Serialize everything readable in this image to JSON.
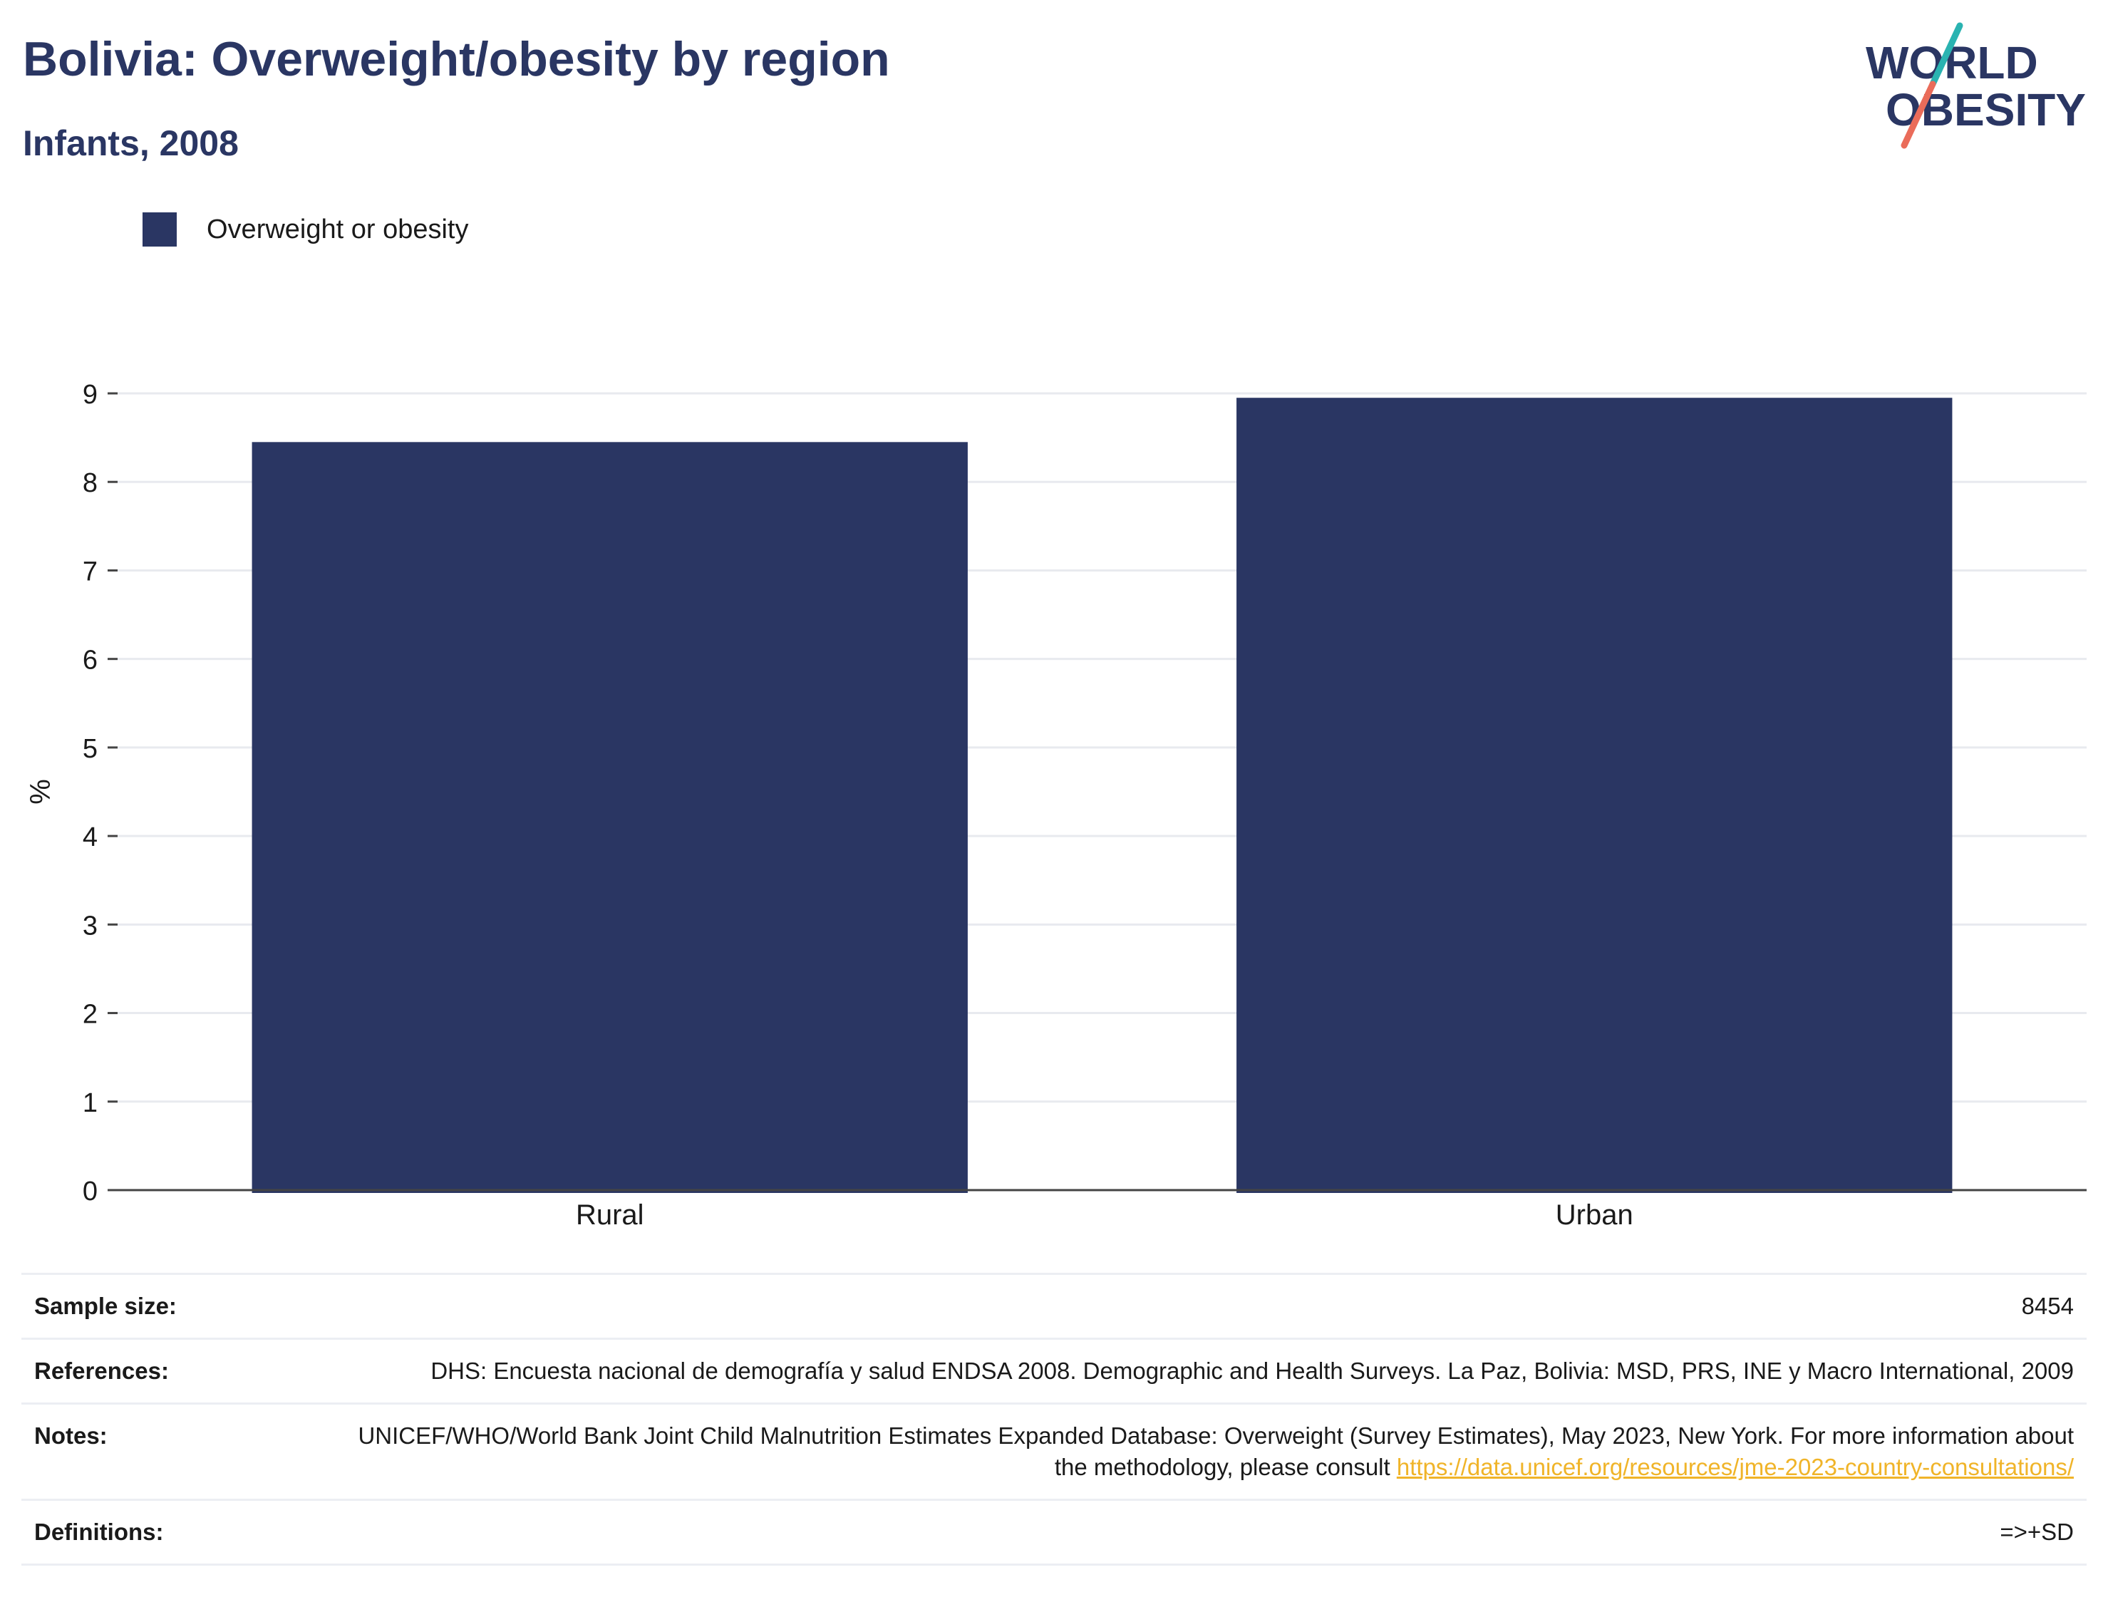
{
  "header": {
    "title": "Bolivia: Overweight/obesity by region",
    "subtitle": "Infants, 2008"
  },
  "logo": {
    "line1": "WORLD",
    "line2": "OBESITY",
    "colors": {
      "text": "#2a3663",
      "slash_top": "#2ab3b1",
      "slash_bottom": "#ea6c5a"
    }
  },
  "legend": {
    "items": [
      {
        "label": "Overweight or obesity",
        "color": "#2a3663"
      }
    ]
  },
  "chart_data": {
    "type": "bar",
    "categories": [
      "Rural",
      "Urban"
    ],
    "series": [
      {
        "name": "Overweight or obesity",
        "values": [
          8.45,
          8.95
        ],
        "color": "#2a3663"
      }
    ],
    "ylabel": "%",
    "xlabel": "",
    "ylim": [
      0,
      9
    ],
    "yticks": [
      0,
      1,
      2,
      3,
      4,
      5,
      6,
      7,
      8,
      9
    ],
    "grid": true,
    "legend_position": "top-left"
  },
  "info": {
    "sample_size_label": "Sample size:",
    "sample_size_value": "8454",
    "references_label": "References:",
    "references_value": "DHS: Encuesta nacional de demografía y salud ENDSA 2008. Demographic and Health Surveys. La Paz, Bolivia: MSD, PRS, INE y Macro International, 2009",
    "notes_label": "Notes:",
    "notes_text": "UNICEF/WHO/World Bank Joint Child Malnutrition Estimates Expanded Database: Overweight (Survey Estimates), May 2023, New York. For more information about the methodology, please consult ",
    "notes_link": "https://data.unicef.org/resources/jme-2023-country-consultations/",
    "definitions_label": "Definitions:",
    "definitions_value": "=>+SD"
  }
}
